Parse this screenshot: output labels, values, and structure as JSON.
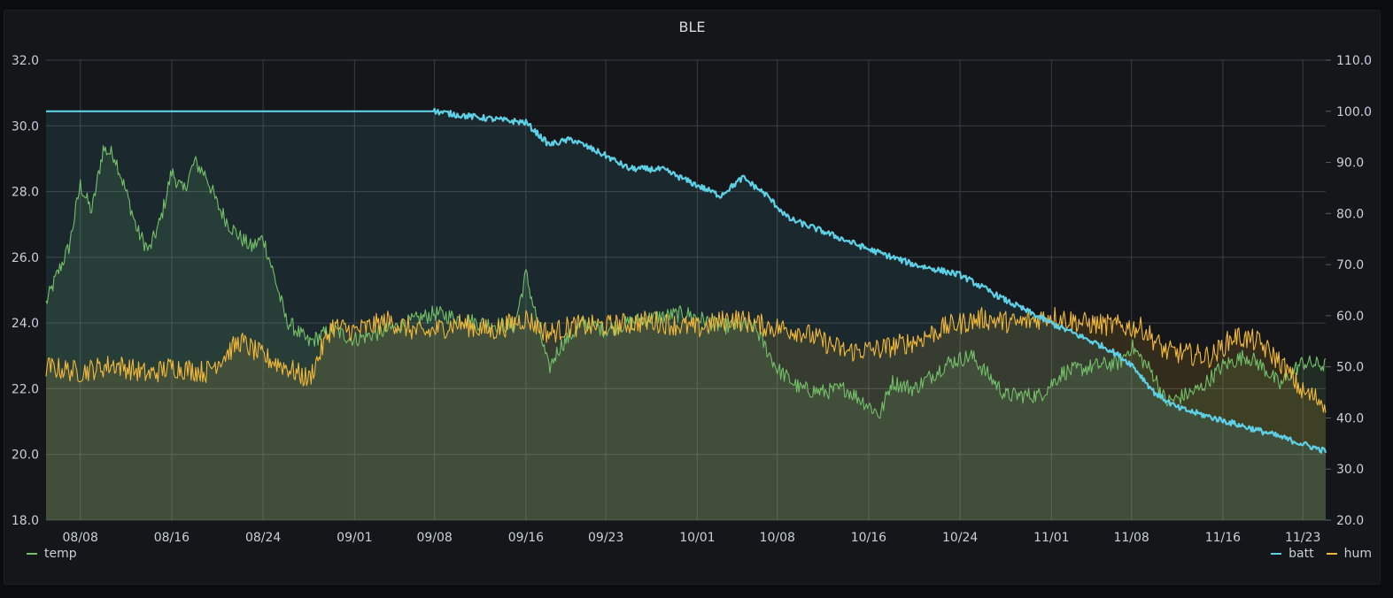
{
  "panel": {
    "title": "BLE"
  },
  "colors": {
    "temp": "#73bf69",
    "batt": "#5ed0e6",
    "hum": "#f2b83a",
    "grid": "#3a3d42",
    "background": "#141619"
  },
  "chart_data": {
    "type": "line",
    "title": "BLE",
    "grid": true,
    "legend_placement": "bottom",
    "x_ticks": [
      "08/08",
      "08/16",
      "08/24",
      "09/01",
      "09/08",
      "09/16",
      "09/23",
      "10/01",
      "10/08",
      "10/16",
      "10/24",
      "11/01",
      "11/08",
      "11/16",
      "11/23"
    ],
    "x_range": [
      "2023-08-05",
      "2023-11-25"
    ],
    "y_left": {
      "range": [
        18,
        32
      ],
      "ticks": [
        "18.0",
        "20.0",
        "22.0",
        "24.0",
        "26.0",
        "28.0",
        "30.0",
        "32.0"
      ]
    },
    "y_right": {
      "range": [
        20,
        110
      ],
      "ticks": [
        "20.0",
        "30.0",
        "40.0",
        "50.0",
        "60.0",
        "70.0",
        "80.0",
        "90.0",
        "100.0",
        "110.0"
      ]
    },
    "series": [
      {
        "name": "temp",
        "axis": "left",
        "x": [
          "2023-08-05",
          "2023-08-06",
          "2023-08-07",
          "2023-08-08",
          "2023-08-09",
          "2023-08-10",
          "2023-08-11",
          "2023-08-12",
          "2023-08-13",
          "2023-08-14",
          "2023-08-15",
          "2023-08-16",
          "2023-08-17",
          "2023-08-18",
          "2023-08-19",
          "2023-08-20",
          "2023-08-21",
          "2023-08-22",
          "2023-08-23",
          "2023-08-24",
          "2023-08-25",
          "2023-08-26",
          "2023-08-28",
          "2023-08-30",
          "2023-09-01",
          "2023-09-04",
          "2023-09-08",
          "2023-09-12",
          "2023-09-15",
          "2023-09-16",
          "2023-09-18",
          "2023-09-19",
          "2023-09-21",
          "2023-09-23",
          "2023-09-26",
          "2023-09-30",
          "2023-10-03",
          "2023-10-06",
          "2023-10-08",
          "2023-10-10",
          "2023-10-12",
          "2023-10-14",
          "2023-10-16",
          "2023-10-17",
          "2023-10-18",
          "2023-10-20",
          "2023-10-23",
          "2023-10-25",
          "2023-10-28",
          "2023-10-31",
          "2023-11-02",
          "2023-11-05",
          "2023-11-07",
          "2023-11-08",
          "2023-11-10",
          "2023-11-11",
          "2023-11-12",
          "2023-11-14",
          "2023-11-16",
          "2023-11-18",
          "2023-11-19",
          "2023-11-20",
          "2023-11-21",
          "2023-11-22",
          "2023-11-23",
          "2023-11-25"
        ],
        "values": [
          24.6,
          25.5,
          26.3,
          28.2,
          27.4,
          29.3,
          29.1,
          28.0,
          26.8,
          26.2,
          27.1,
          28.6,
          28.0,
          28.9,
          28.5,
          27.6,
          27.0,
          26.6,
          26.3,
          26.6,
          25.4,
          24.1,
          23.4,
          23.8,
          23.5,
          23.8,
          24.3,
          24.0,
          23.9,
          25.5,
          22.6,
          23.3,
          24.0,
          23.8,
          24.1,
          24.3,
          23.9,
          23.9,
          22.6,
          22.0,
          21.9,
          22.0,
          21.5,
          21.2,
          22.2,
          22.0,
          22.8,
          23.0,
          21.8,
          21.8,
          22.5,
          22.7,
          22.8,
          23.3,
          22.4,
          21.6,
          21.7,
          22.0,
          22.7,
          23.0,
          22.8,
          22.5,
          22.1,
          22.5,
          22.8,
          22.7
        ]
      },
      {
        "name": "batt",
        "axis": "right",
        "x": [
          "2023-08-05",
          "2023-08-27",
          "2023-08-28",
          "2023-09-01",
          "2023-09-08",
          "2023-09-10",
          "2023-09-13",
          "2023-09-16",
          "2023-09-18",
          "2023-09-20",
          "2023-09-23",
          "2023-09-25",
          "2023-09-28",
          "2023-10-01",
          "2023-10-03",
          "2023-10-05",
          "2023-10-07",
          "2023-10-09",
          "2023-10-12",
          "2023-10-16",
          "2023-10-20",
          "2023-10-24",
          "2023-10-28",
          "2023-11-01",
          "2023-11-06",
          "2023-11-08",
          "2023-11-10",
          "2023-11-12",
          "2023-11-16",
          "2023-11-20",
          "2023-11-25"
        ],
        "values": [
          100,
          100,
          100,
          100,
          100,
          99.3,
          98.5,
          97.8,
          93.5,
          94.5,
          91.3,
          88.8,
          88.6,
          85.5,
          83.5,
          87.0,
          83.7,
          79.0,
          76.5,
          73.0,
          70.0,
          68.0,
          63.0,
          58.5,
          53.5,
          50.5,
          45.0,
          42.0,
          39.5,
          37.0,
          33.5
        ]
      },
      {
        "name": "hum",
        "axis": "right",
        "x": [
          "2023-08-05",
          "2023-08-08",
          "2023-08-11",
          "2023-08-14",
          "2023-08-16",
          "2023-08-19",
          "2023-08-22",
          "2023-08-24",
          "2023-08-26",
          "2023-08-28",
          "2023-08-30",
          "2023-09-01",
          "2023-09-04",
          "2023-09-07",
          "2023-09-10",
          "2023-09-13",
          "2023-09-16",
          "2023-09-18",
          "2023-09-20",
          "2023-09-23",
          "2023-09-27",
          "2023-10-01",
          "2023-10-04",
          "2023-10-07",
          "2023-10-10",
          "2023-10-14",
          "2023-10-17",
          "2023-10-20",
          "2023-10-23",
          "2023-10-26",
          "2023-10-29",
          "2023-11-01",
          "2023-11-04",
          "2023-11-07",
          "2023-11-09",
          "2023-11-11",
          "2023-11-13",
          "2023-11-15",
          "2023-11-17",
          "2023-11-19",
          "2023-11-21",
          "2023-11-23",
          "2023-11-25"
        ],
        "values": [
          50.0,
          49.0,
          50.5,
          48.5,
          50.0,
          49.0,
          55.0,
          52.0,
          50.0,
          47.5,
          58.0,
          57.0,
          59.0,
          56.5,
          58.5,
          57.0,
          59.5,
          56.5,
          58.0,
          58.0,
          59.0,
          57.5,
          59.5,
          58.0,
          57.0,
          53.0,
          53.5,
          55.0,
          58.0,
          59.5,
          58.5,
          60.0,
          58.5,
          58.0,
          57.5,
          53.0,
          52.5,
          52.0,
          56.0,
          55.0,
          51.0,
          45.0,
          43.0
        ]
      }
    ]
  },
  "legend": {
    "left": [
      {
        "name": "temp"
      }
    ],
    "right": [
      {
        "name": "batt"
      },
      {
        "name": "hum"
      }
    ]
  }
}
